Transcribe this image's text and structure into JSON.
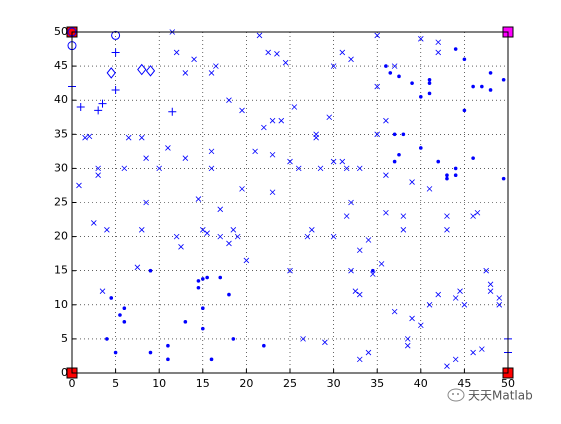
{
  "chart_data": {
    "type": "scatter",
    "xlim": [
      0,
      50
    ],
    "ylim": [
      0,
      50
    ],
    "xticks": [
      0,
      5,
      10,
      15,
      20,
      25,
      30,
      35,
      40,
      45,
      50
    ],
    "yticks": [
      0,
      5,
      10,
      15,
      20,
      25,
      30,
      35,
      40,
      45,
      50
    ],
    "grid": true,
    "series": [
      {
        "marker": "square",
        "color": "#ff0000",
        "x": [
          0,
          0,
          50
        ],
        "y": [
          0,
          50,
          0
        ]
      },
      {
        "marker": "square",
        "color": "#ff00ff",
        "x": [
          50
        ],
        "y": [
          50
        ]
      },
      {
        "marker": "circle",
        "color": "#0000ff",
        "x": [
          0,
          0,
          5
        ],
        "y": [
          48,
          50,
          49.5
        ]
      },
      {
        "marker": "plus",
        "color": "#0000ff",
        "x": [
          0,
          1,
          3,
          3.5,
          5,
          5,
          11.5,
          50,
          50
        ],
        "y": [
          42,
          39,
          38.5,
          39.5,
          41.5,
          47,
          38.3,
          3,
          5
        ]
      },
      {
        "marker": "diamond",
        "color": "#0000ff",
        "x": [
          4.5,
          8,
          9
        ],
        "y": [
          44,
          44.5,
          44.3
        ]
      },
      {
        "marker": "cross",
        "color": "#0000ff",
        "x": [
          0.8,
          1.5,
          2,
          2.5,
          3,
          3,
          3.5,
          4,
          6,
          6.5,
          7.5,
          8,
          8,
          8.5,
          8.5,
          10,
          11,
          11.5,
          12,
          12,
          12.5,
          13,
          13,
          14,
          14.5,
          15,
          15.5,
          16,
          16,
          16,
          16.5,
          17,
          17,
          18,
          18,
          18.5,
          19,
          19.5,
          19.5,
          20,
          21,
          21.5,
          22,
          22.5,
          23,
          23,
          23,
          23.5,
          24,
          24.5,
          25,
          25,
          25.5,
          26,
          26.5,
          27,
          27.5,
          28,
          28,
          28.5,
          29,
          29.5,
          30,
          30,
          30,
          31,
          31,
          31.5,
          31.5,
          32,
          32,
          32,
          32.5,
          33,
          33,
          33,
          33,
          34,
          34,
          34.5,
          35,
          35,
          35,
          35.5,
          36,
          36,
          36,
          37,
          37,
          38,
          38,
          38.5,
          38.5,
          39,
          39,
          40,
          40,
          41,
          41,
          42,
          42,
          42,
          43,
          43,
          44,
          44.5,
          45,
          46,
          46.5,
          47,
          47.5,
          48,
          48,
          49,
          49,
          44,
          46,
          43
        ],
        "y": [
          27.5,
          34.5,
          34.7,
          22,
          30,
          29,
          12,
          21,
          30,
          34.5,
          15.5,
          21,
          34.5,
          31.5,
          25,
          30,
          33,
          50,
          47,
          20,
          18.5,
          44,
          31.5,
          46,
          25.5,
          21,
          20.5,
          30,
          32.5,
          44,
          45,
          20,
          24,
          40,
          19,
          21,
          20,
          38.5,
          27,
          16.5,
          32.5,
          49.5,
          36,
          47,
          37,
          32,
          26.5,
          46.8,
          37,
          45.5,
          31,
          15,
          39,
          30,
          5,
          20,
          21,
          34.5,
          35,
          30,
          4.5,
          37.5,
          20,
          45,
          31,
          31,
          47,
          30,
          23,
          25,
          46,
          15,
          12,
          11.5,
          18,
          30,
          2,
          19.5,
          3,
          14.5,
          42,
          49.5,
          35,
          16,
          23.5,
          37,
          29,
          9,
          45,
          23,
          21,
          5,
          4,
          8,
          28,
          49,
          7,
          27,
          10,
          48.5,
          47,
          11.5,
          21,
          23,
          11,
          12,
          10,
          23,
          23.5,
          3.5,
          15,
          12,
          13,
          11,
          10,
          2,
          3,
          1
        ]
      },
      {
        "marker": "dot",
        "color": "#0000ff",
        "x": [
          44,
          45,
          47,
          48,
          48,
          49.5,
          36,
          36.5,
          37.5,
          39,
          40,
          41,
          41,
          41,
          37,
          38,
          37,
          37.5,
          40,
          42,
          43,
          43,
          44,
          44,
          46,
          49.5,
          46,
          45,
          4.5,
          5,
          5.5,
          6,
          6,
          4,
          9,
          9,
          11,
          11,
          13,
          14.5,
          14.5,
          15,
          15,
          15,
          15.5,
          16,
          17,
          18,
          18.5,
          22,
          34.5
        ],
        "y": [
          47.5,
          46,
          42,
          41.5,
          44,
          43,
          45,
          44,
          43.5,
          42.5,
          40.5,
          42.5,
          43,
          41,
          35,
          35,
          31,
          32,
          33,
          31,
          29,
          28.5,
          29,
          30,
          31.5,
          28.5,
          42,
          38.5,
          11,
          3,
          8.5,
          9.5,
          7.5,
          5,
          15,
          3,
          2,
          4,
          7.5,
          13.5,
          12.5,
          9.5,
          13.8,
          6.5,
          14,
          2,
          14,
          11.5,
          5,
          4,
          15
        ]
      }
    ]
  },
  "watermark": "天天Matlab"
}
